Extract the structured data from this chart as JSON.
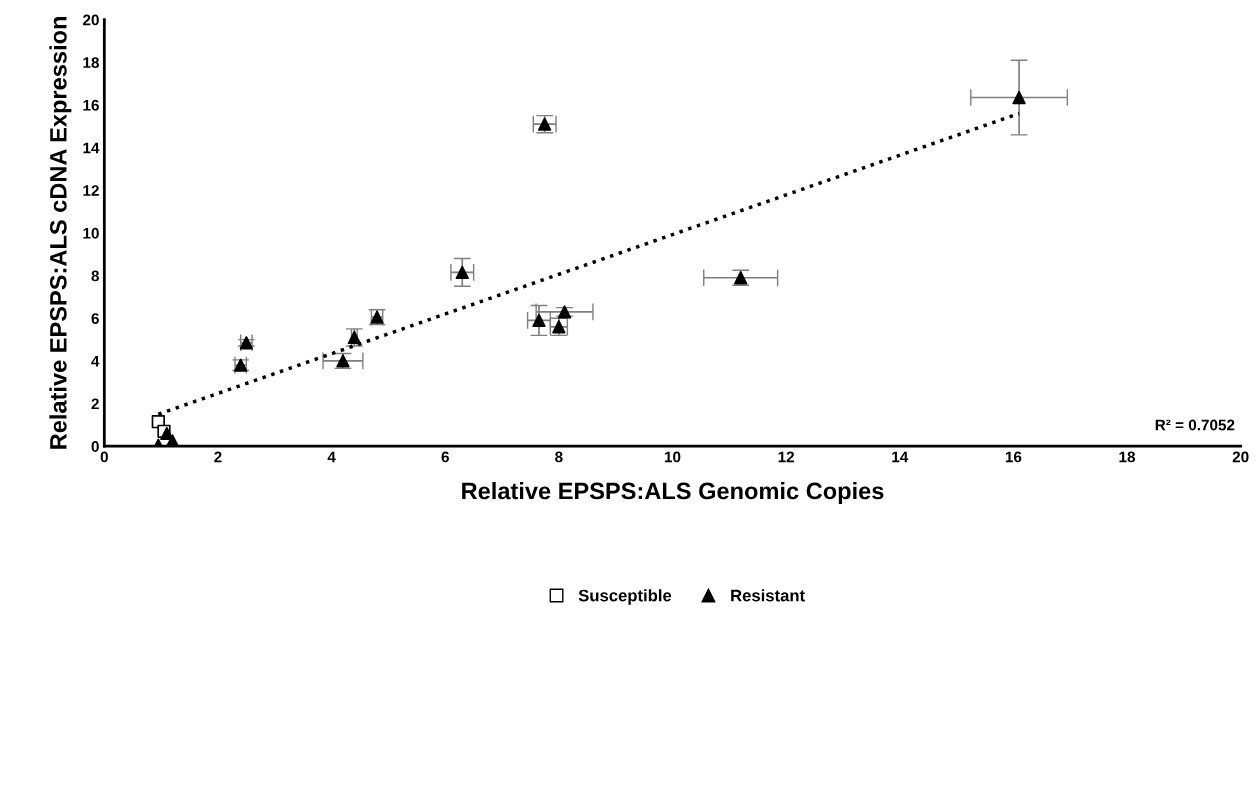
{
  "chart_data": {
    "type": "scatter",
    "xlabel": "Relative EPSPS:ALS Genomic Copies",
    "ylabel": "Relative EPSPS:ALS cDNA Expression",
    "xlim": [
      0,
      20
    ],
    "ylim": [
      0,
      20
    ],
    "xticks": [
      0,
      2,
      4,
      6,
      8,
      10,
      12,
      14,
      16,
      18,
      20
    ],
    "yticks": [
      0,
      2,
      4,
      6,
      8,
      10,
      12,
      14,
      16,
      18,
      20
    ],
    "grid": false,
    "legend": "bottom",
    "series": [
      {
        "name": "Susceptible",
        "color": "#000000",
        "marker": "square",
        "x": [
          0.95,
          1.05
        ],
        "values": [
          1.15,
          0.7
        ]
      },
      {
        "name": "Resistant",
        "color": "#000000",
        "marker": "triangle",
        "x": [
          0.95,
          1.1,
          1.2,
          2.4,
          2.5,
          4.2,
          4.4,
          4.8,
          6.3,
          7.75,
          7.65,
          8.0,
          8.1,
          11.2,
          16.1
        ],
        "values": [
          0.05,
          0.6,
          0.25,
          3.8,
          4.85,
          4.0,
          5.1,
          6.05,
          8.15,
          15.1,
          5.9,
          5.6,
          6.3,
          7.9,
          16.35
        ],
        "errors": [
          null,
          null,
          null,
          0.25,
          0.15,
          0.35,
          0.4,
          0.35,
          0.65,
          0.4,
          0.7,
          0.4,
          0.2,
          0.35,
          1.75
        ],
        "xerrors": [
          null,
          null,
          null,
          0.1,
          0.1,
          0.35,
          0.05,
          0.1,
          0.2,
          0.2,
          0.2,
          0.15,
          0.5,
          0.65,
          0.85
        ]
      },
      {
        "type": "line",
        "color": "#000000",
        "line_style": "dotted",
        "marker": "none",
        "x": [
          0.95,
          16.1
        ],
        "values": [
          1.5,
          15.6
        ]
      }
    ],
    "annotations": [
      {
        "text": "R² = 0.7052"
      }
    ]
  }
}
